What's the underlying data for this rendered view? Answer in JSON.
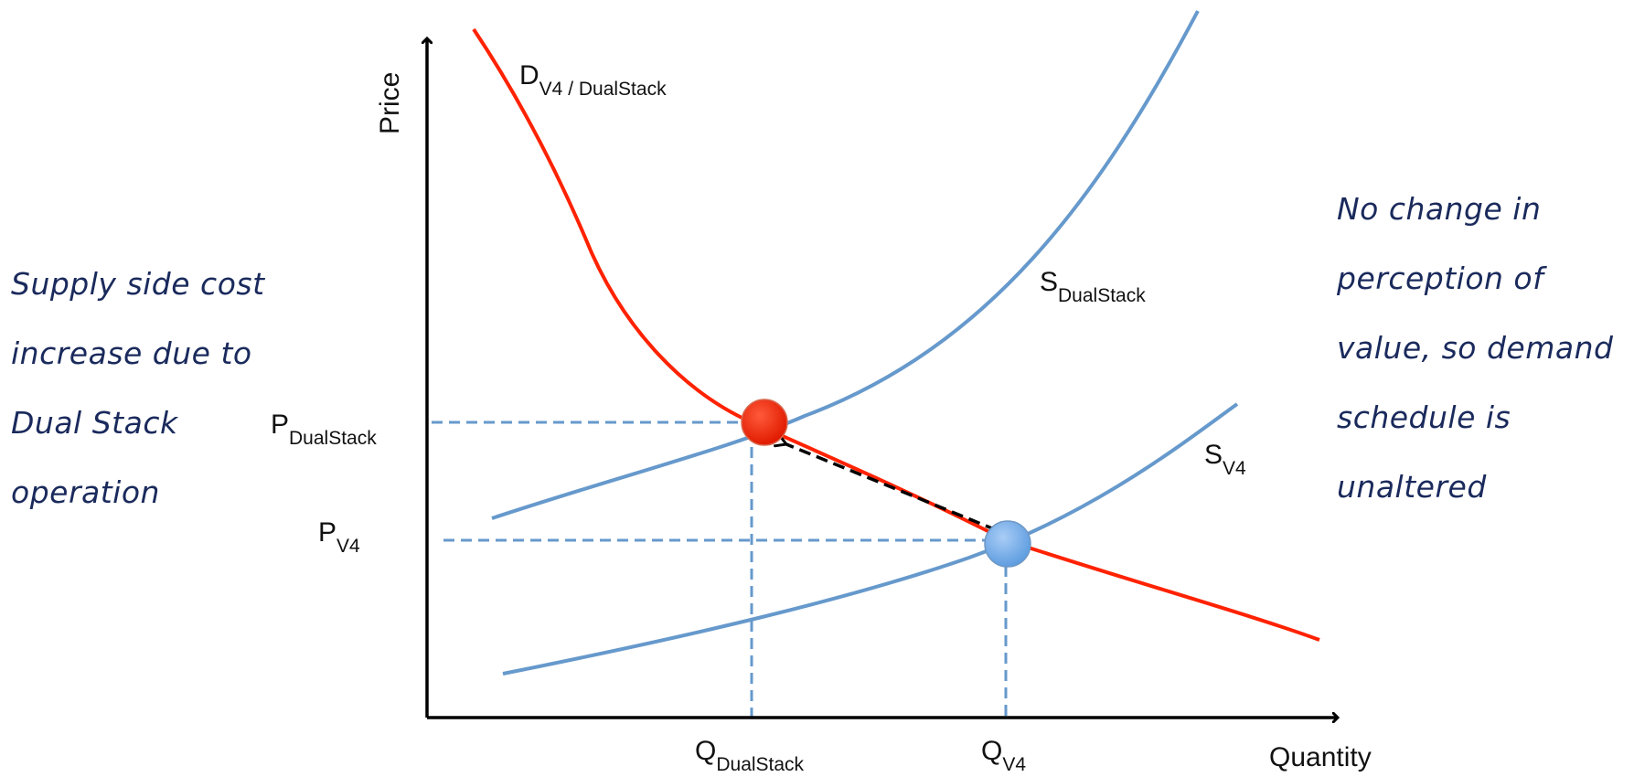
{
  "axes": {
    "y_label": "Price",
    "x_label": "Quantity"
  },
  "curves": {
    "demand": {
      "main": "D",
      "sub": "V4 / DualStack",
      "color": "#ff2200"
    },
    "supply_dualstack": {
      "main": "S",
      "sub": "DualStack",
      "color": "#6699cc"
    },
    "supply_v4": {
      "main": "S",
      "sub": "V4",
      "color": "#6699cc"
    }
  },
  "price_levels": {
    "dualstack": {
      "main": "P",
      "sub": "DualStack"
    },
    "v4": {
      "main": "P",
      "sub": "V4"
    }
  },
  "quantity_levels": {
    "dualstack": {
      "main": "Q",
      "sub": "DualStack"
    },
    "v4": {
      "main": "Q",
      "sub": "V4"
    }
  },
  "equilibria": {
    "dualstack": {
      "color": "#ff2200"
    },
    "v4": {
      "color": "#77aaee"
    }
  },
  "notes": {
    "left": [
      "Supply side cost",
      "increase due to",
      "Dual Stack",
      "operation"
    ],
    "right": [
      "No change in",
      "perception of",
      "value, so demand",
      "schedule is",
      "unaltered"
    ]
  },
  "colors": {
    "axis": "#000000",
    "dashed": "#6699cc",
    "shift_arrow": "#000000",
    "note_ink": "#1a2a5c"
  }
}
